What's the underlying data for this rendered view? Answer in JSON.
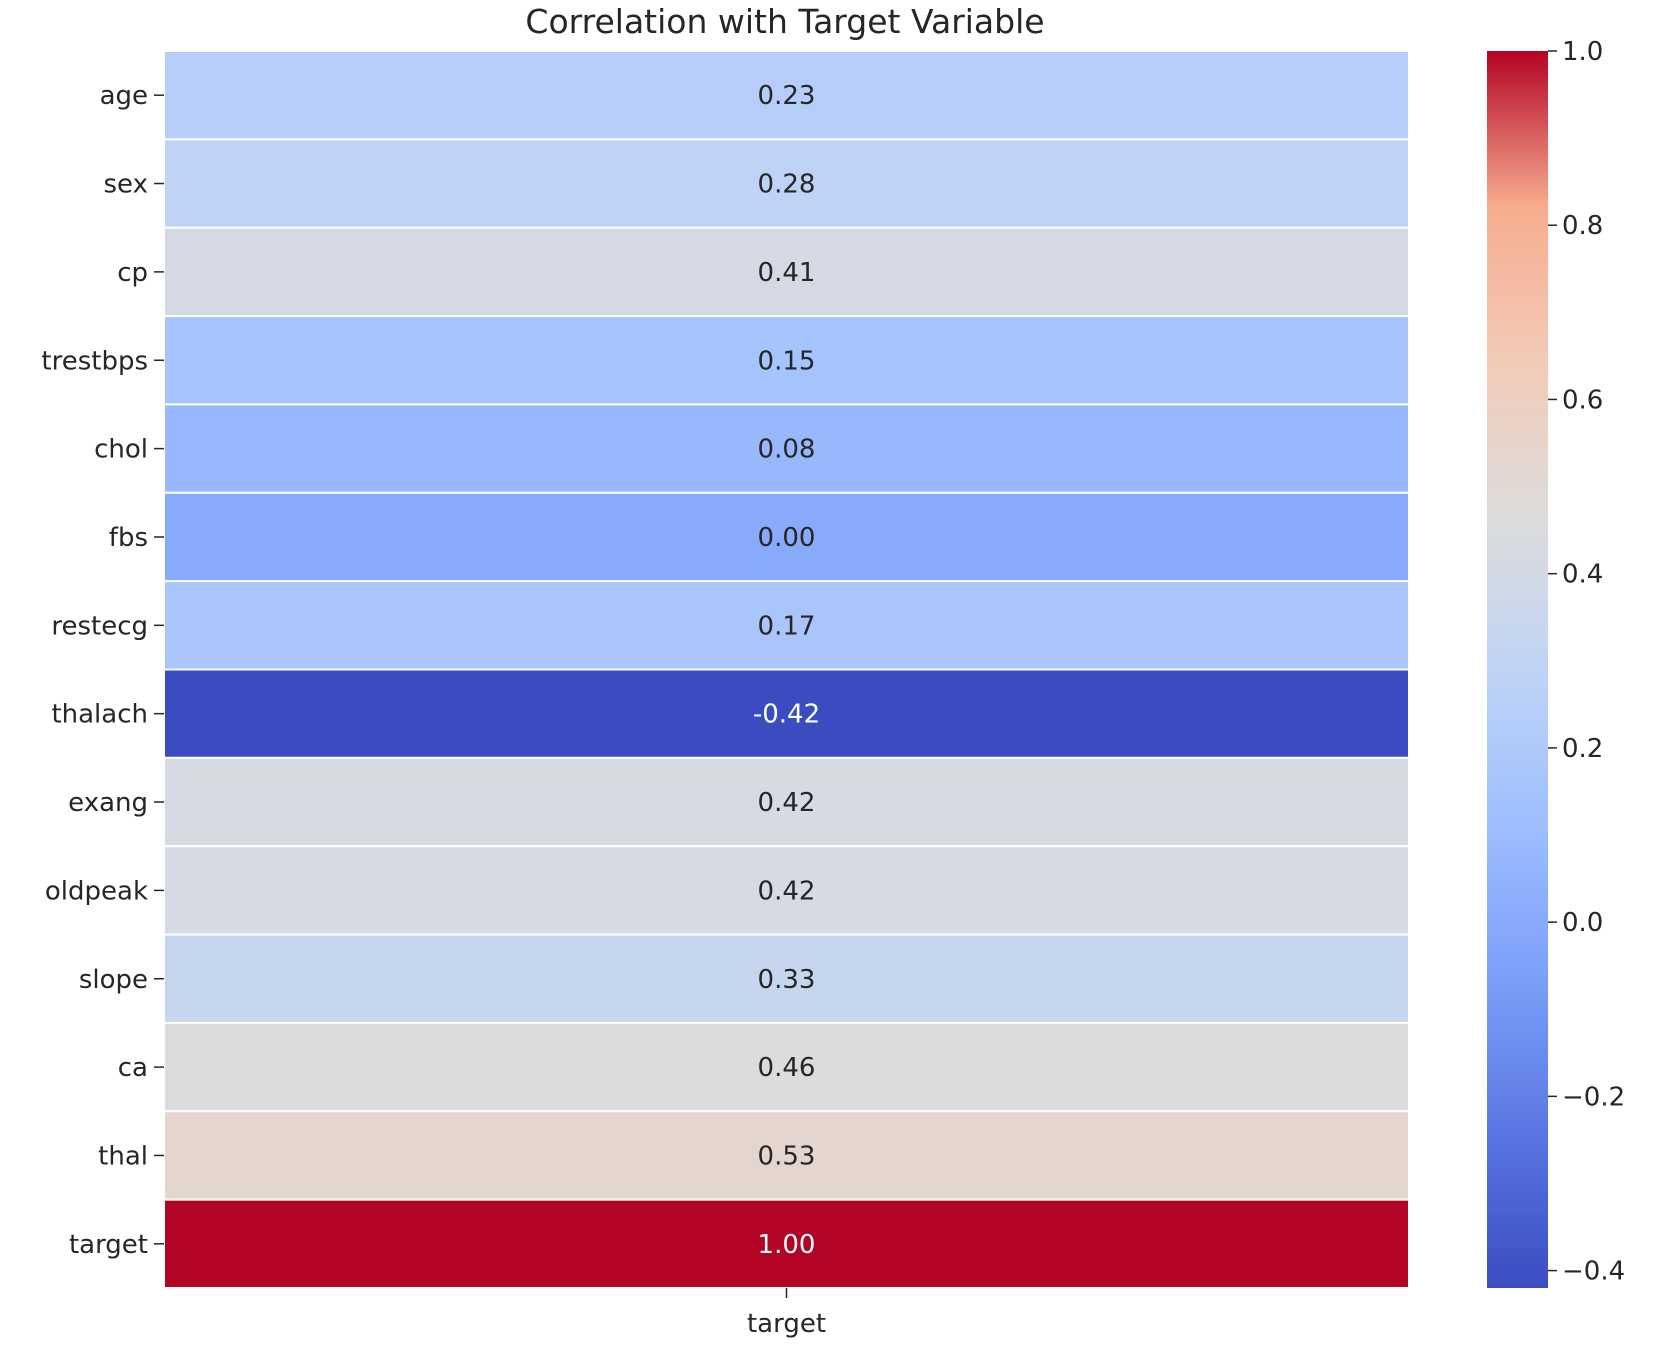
{
  "chart_data": {
    "type": "heatmap",
    "title": "Correlation with Target Variable",
    "columns": [
      "target"
    ],
    "rows": [
      "age",
      "sex",
      "cp",
      "trestbps",
      "chol",
      "fbs",
      "restecg",
      "thalach",
      "exang",
      "oldpeak",
      "slope",
      "ca",
      "thal",
      "target"
    ],
    "values": [
      0.23,
      0.28,
      0.41,
      0.15,
      0.08,
      0.0,
      0.17,
      -0.42,
      0.42,
      0.42,
      0.33,
      0.46,
      0.53,
      1.0
    ],
    "value_labels": [
      "0.23",
      "0.28",
      "0.41",
      "0.15",
      "0.08",
      "0.00",
      "0.17",
      "-0.42",
      "0.42",
      "0.42",
      "0.33",
      "0.46",
      "0.53",
      "1.00"
    ],
    "colormap": "coolwarm",
    "vmin": -0.42,
    "vmax": 1.0,
    "colorbar": {
      "ticks": [
        1.0,
        0.8,
        0.6,
        0.4,
        0.2,
        0.0,
        -0.2,
        -0.4
      ],
      "tick_labels": [
        "1.0",
        "0.8",
        "0.6",
        "0.4",
        "0.2",
        "0.0",
        "−0.2",
        "−0.4"
      ]
    }
  }
}
